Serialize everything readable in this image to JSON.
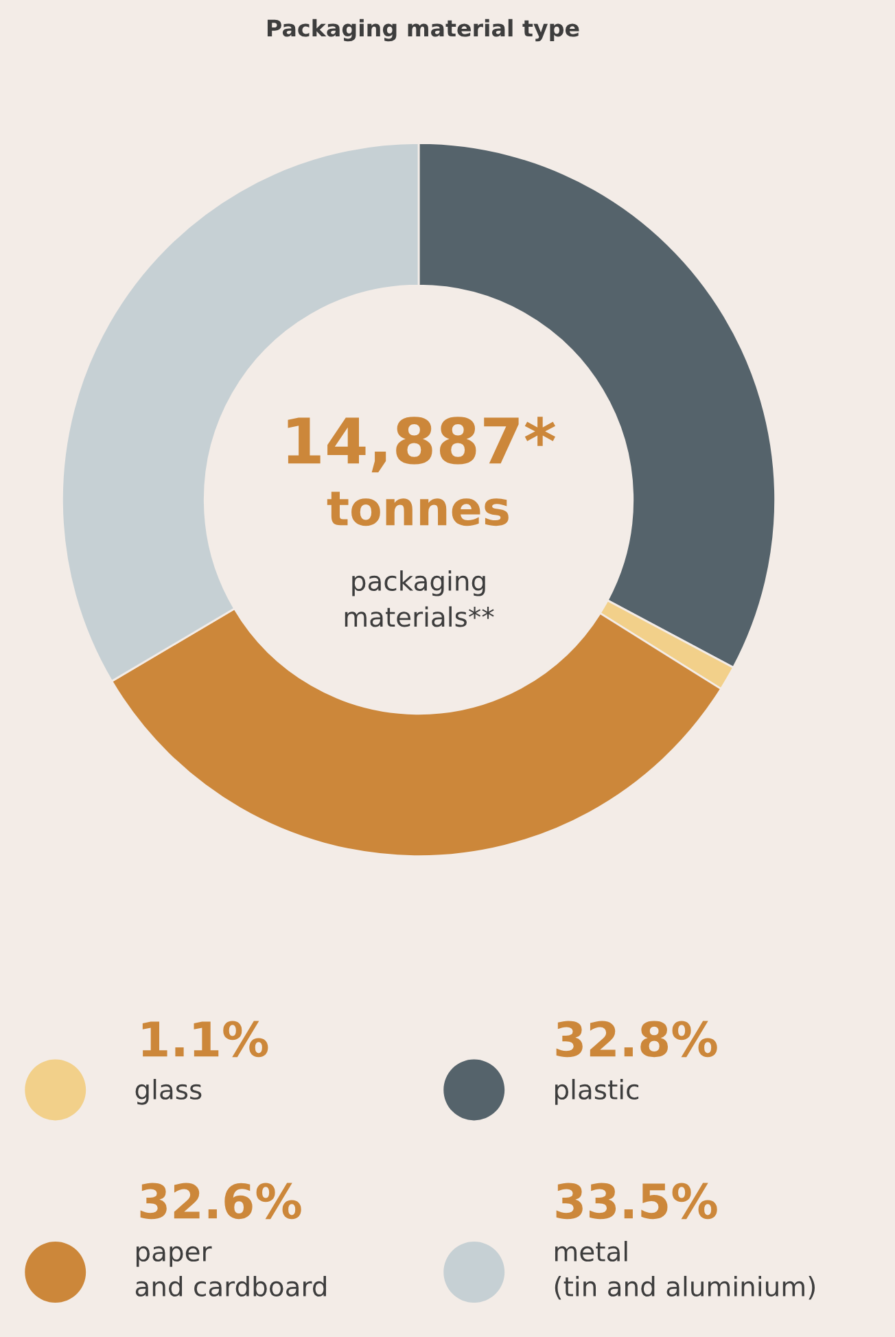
{
  "chart_data": {
    "type": "donut",
    "title": "Packaging material type",
    "categories": [
      "plastic",
      "glass",
      "paper\nand cardboard",
      "metal\n(tin and aluminium)"
    ],
    "values": [
      32.8,
      1.1,
      32.6,
      33.5
    ],
    "colors": [
      "#55636b",
      "#f2d08a",
      "#cc873a",
      "#c6d0d4"
    ],
    "value_labels": [
      "32.8%",
      "1.1%",
      "32.6%",
      "33.5%"
    ],
    "annotations": [
      "14,887*",
      "tonnes",
      "packaging\nmaterials**"
    ],
    "legend": "bottom"
  }
}
